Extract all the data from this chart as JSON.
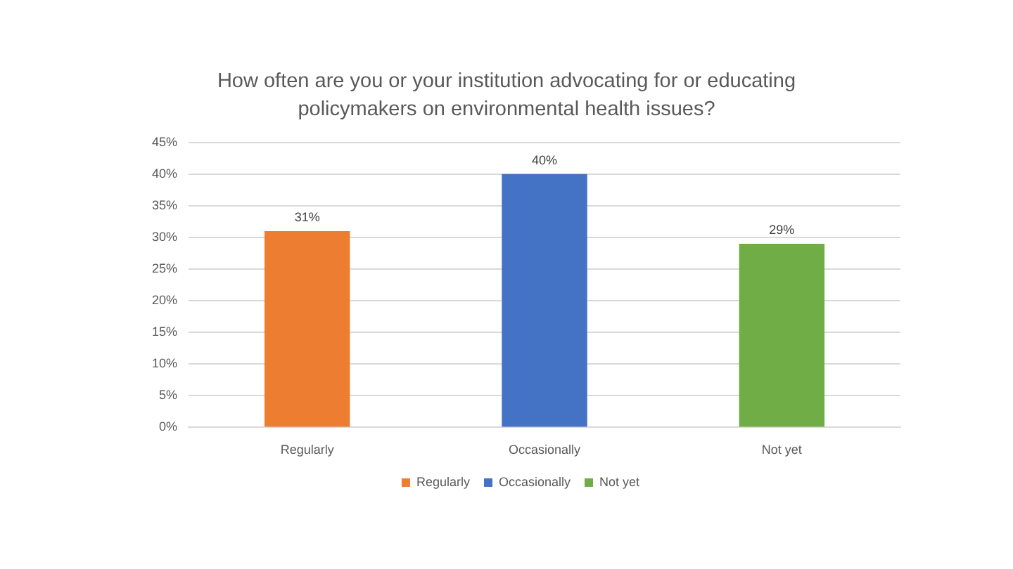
{
  "chart_data": {
    "type": "bar",
    "title": "How often are you or your institution advocating for or educating policymakers on environmental health issues?",
    "categories": [
      "Regularly",
      "Occasionally",
      "Not yet"
    ],
    "series": [
      {
        "name": "Regularly",
        "color": "#ed7d31",
        "values": [
          31,
          null,
          null
        ],
        "value_labels": [
          "31%",
          null,
          null
        ]
      },
      {
        "name": "Occasionally",
        "color": "#4472c4",
        "values": [
          null,
          40,
          null
        ],
        "value_labels": [
          null,
          "40%",
          null
        ]
      },
      {
        "name": "Not yet",
        "color": "#70ad47",
        "values": [
          null,
          null,
          29
        ],
        "value_labels": [
          null,
          null,
          "29%"
        ]
      }
    ],
    "ylim": [
      0,
      45
    ],
    "yticks": [
      {
        "value": 0,
        "label": "0%"
      },
      {
        "value": 5,
        "label": "5%"
      },
      {
        "value": 10,
        "label": "10%"
      },
      {
        "value": 15,
        "label": "15%"
      },
      {
        "value": 20,
        "label": "20%"
      },
      {
        "value": 25,
        "label": "25%"
      },
      {
        "value": 30,
        "label": "30%"
      },
      {
        "value": 35,
        "label": "35%"
      },
      {
        "value": 40,
        "label": "40%"
      },
      {
        "value": 45,
        "label": "45%"
      }
    ],
    "grid": "y",
    "legend": "bottom"
  }
}
